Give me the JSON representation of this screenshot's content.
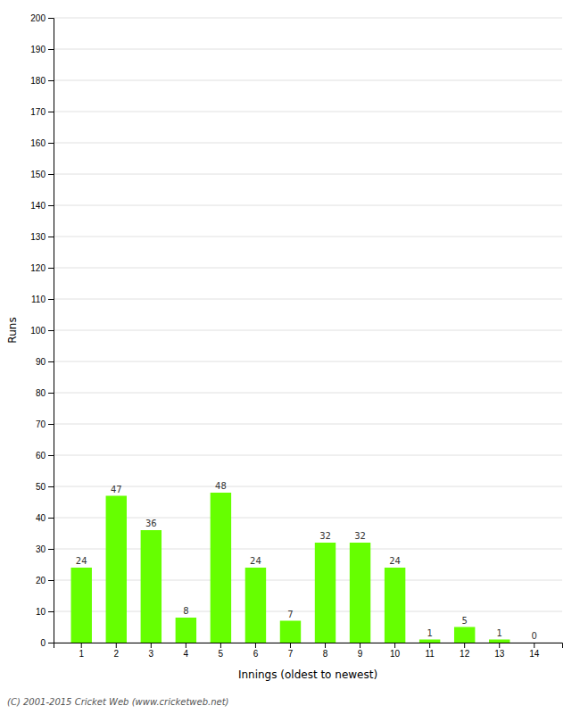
{
  "chart_data": {
    "type": "bar",
    "xlabel": "Innings (oldest to newest)",
    "ylabel": "Runs",
    "footer": "(C) 2001-2015 Cricket Web (www.cricketweb.net)",
    "categories": [
      1,
      2,
      3,
      4,
      5,
      6,
      7,
      8,
      9,
      10,
      11,
      12,
      13,
      14
    ],
    "values": [
      24,
      47,
      36,
      8,
      48,
      24,
      7,
      32,
      32,
      24,
      1,
      5,
      1,
      0
    ],
    "color": "#66ff00",
    "ylim": [
      0,
      200
    ],
    "yticks": [
      0,
      10,
      20,
      30,
      40,
      50,
      60,
      70,
      80,
      90,
      100,
      110,
      120,
      130,
      140,
      150,
      160,
      170,
      180,
      190,
      200
    ],
    "grid": true,
    "data_labels": true
  }
}
